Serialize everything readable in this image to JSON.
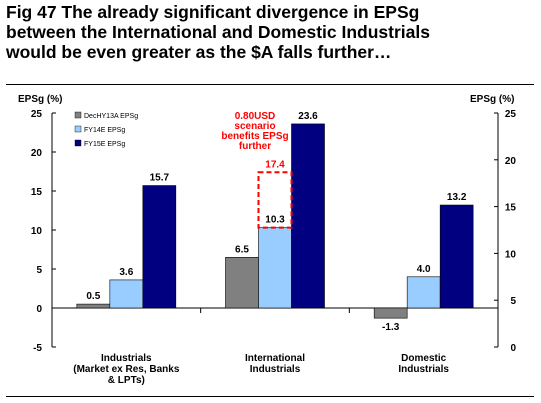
{
  "title": {
    "line1": "Fig 47    The already significant divergence in EPSg",
    "line2": "between the International and Domestic Industrials",
    "line3": "would be even greater as the $A falls further…"
  },
  "chart_data": {
    "type": "bar",
    "categories": [
      "Industrials (Market ex Res, Banks & LPTs)",
      "International Industrials",
      "Domestic Industrials"
    ],
    "category_label_lines": [
      [
        "Industrials",
        "(Market ex Res, Banks",
        "& LPTs)"
      ],
      [
        "International",
        "Industrials"
      ],
      [
        "Domestic",
        "Industrials"
      ]
    ],
    "series": [
      {
        "name": "DecHY13A  EPSg",
        "color": "#808080",
        "values": [
          0.5,
          6.5,
          -1.3
        ],
        "labels": [
          "0.5",
          "6.5",
          "-1.3"
        ]
      },
      {
        "name": "FY14E  EPSg",
        "color": "#99ccff",
        "values": [
          3.6,
          10.3,
          4.0
        ],
        "labels": [
          "3.6",
          "10.3",
          "4.0"
        ]
      },
      {
        "name": "FY15E  EPSg",
        "color": "#000080",
        "values": [
          15.7,
          23.6,
          13.2
        ],
        "labels": [
          "15.7",
          "23.6",
          "13.2"
        ]
      }
    ],
    "scenario": {
      "category_index": 1,
      "series_index": 1,
      "value": 17.4,
      "label": "17.4",
      "color": "#ff0000",
      "note_lines": [
        "0.80USD",
        "scenario",
        "benefits EPSg",
        "further"
      ]
    },
    "y_left": {
      "label": "EPSg (%)",
      "lim": [
        -5,
        25
      ],
      "ticks": [
        -5,
        0,
        5,
        10,
        15,
        20,
        25
      ]
    },
    "y_right": {
      "label": "EPSg (%)",
      "lim": [
        0,
        25
      ],
      "ticks": [
        0,
        5,
        10,
        15,
        20,
        25
      ]
    },
    "grid": false,
    "legend_position": "top-left"
  }
}
